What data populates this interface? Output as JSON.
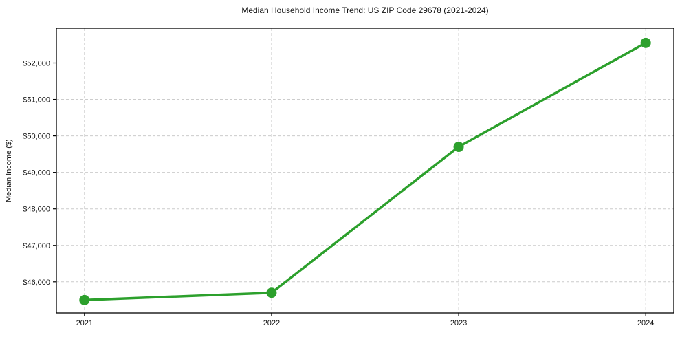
{
  "figure": {
    "background_color": "#ffffff"
  },
  "chart_data": {
    "type": "line",
    "title": "Median Household Income Trend: US ZIP Code 29678 (2021-2024)",
    "xlabel": "",
    "ylabel": "Median Income ($)",
    "x": [
      2021,
      2022,
      2023,
      2024
    ],
    "x_tick_labels": [
      "2021",
      "2022",
      "2023",
      "2024"
    ],
    "values": [
      45500,
      45700,
      49700,
      52550
    ],
    "y_ticks": [
      46000,
      47000,
      48000,
      49000,
      50000,
      51000,
      52000
    ],
    "y_tick_labels": [
      "$46,000",
      "$47,000",
      "$48,000",
      "$49,000",
      "$50,000",
      "$51,000",
      "$52,000"
    ],
    "xlim": [
      2020.85,
      2024.15
    ],
    "ylim": [
      45148,
      52952
    ],
    "grid": true,
    "grid_line_style": "dashed",
    "legend_position": "none",
    "line_color": "#2ca02c",
    "marker": "circle",
    "marker_radius": 7.5,
    "line_width": 3.5,
    "grid_color": "#cccccc",
    "axis_color": "#000000",
    "text_color": "#111111"
  }
}
